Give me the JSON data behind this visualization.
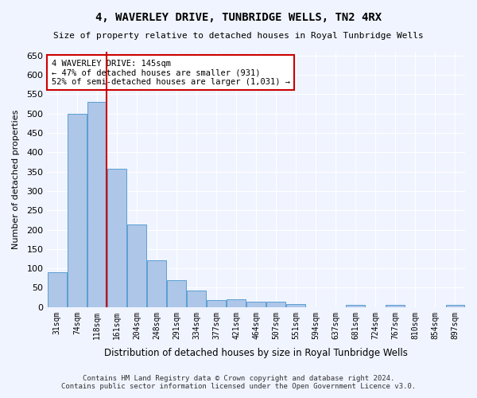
{
  "title": "4, WAVERLEY DRIVE, TUNBRIDGE WELLS, TN2 4RX",
  "subtitle": "Size of property relative to detached houses in Royal Tunbridge Wells",
  "xlabel": "Distribution of detached houses by size in Royal Tunbridge Wells",
  "ylabel": "Number of detached properties",
  "footer_line1": "Contains HM Land Registry data © Crown copyright and database right 2024.",
  "footer_line2": "Contains public sector information licensed under the Open Government Licence v3.0.",
  "categories": [
    "31sqm",
    "74sqm",
    "118sqm",
    "161sqm",
    "204sqm",
    "248sqm",
    "291sqm",
    "334sqm",
    "377sqm",
    "421sqm",
    "464sqm",
    "507sqm",
    "551sqm",
    "594sqm",
    "637sqm",
    "681sqm",
    "724sqm",
    "767sqm",
    "810sqm",
    "854sqm",
    "897sqm"
  ],
  "values": [
    90,
    500,
    530,
    358,
    213,
    121,
    70,
    43,
    18,
    21,
    13,
    13,
    8,
    0,
    0,
    6,
    0,
    6,
    0,
    0,
    6
  ],
  "bar_color": "#aec6e8",
  "bar_edge_color": "#5a9fd4",
  "vline_x": 2.5,
  "vline_color": "#cc0000",
  "annotation_text": "4 WAVERLEY DRIVE: 145sqm\n← 47% of detached houses are smaller (931)\n52% of semi-detached houses are larger (1,031) →",
  "annotation_box_color": "#ffffff",
  "annotation_box_edge_color": "#cc0000",
  "ylim": [
    0,
    660
  ],
  "yticks": [
    0,
    50,
    100,
    150,
    200,
    250,
    300,
    350,
    400,
    450,
    500,
    550,
    600,
    650
  ],
  "background_color": "#f0f4ff",
  "grid_color": "#ffffff",
  "property_sqm": 145
}
